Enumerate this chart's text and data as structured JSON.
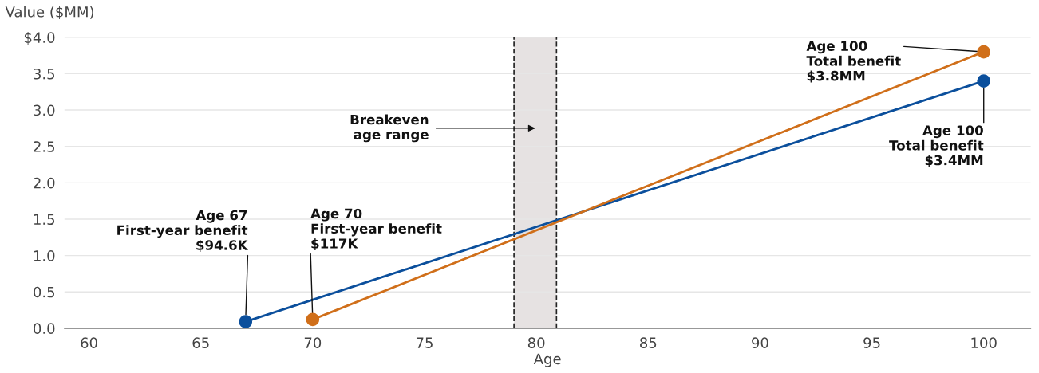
{
  "chart_data": {
    "type": "line",
    "xlabel": "Age",
    "ylabel": "Value ($MM)",
    "xlim": [
      58.9,
      102.1
    ],
    "xticks": [
      60,
      65,
      70,
      75,
      80,
      85,
      90,
      95,
      100
    ],
    "ylim": [
      0,
      4
    ],
    "yticks": [
      {
        "value": 0,
        "label": "0.0"
      },
      {
        "value": 0.5,
        "label": "0.5"
      },
      {
        "value": 1,
        "label": "1.0"
      },
      {
        "value": 1.5,
        "label": "1.5"
      },
      {
        "value": 2,
        "label": "2.0"
      },
      {
        "value": 2.5,
        "label": "2.5"
      },
      {
        "value": 3,
        "label": "3.0"
      },
      {
        "value": 3.5,
        "label": "3.5"
      },
      {
        "value": 4,
        "label": "$4.0"
      }
    ],
    "grid": "y",
    "marker": "circle",
    "line_style": "solid",
    "series": [
      {
        "color": "#0b4f9c",
        "x": [
          67,
          100
        ],
        "values": [
          0.09,
          3.4
        ]
      },
      {
        "color": "#d06f1a",
        "x": [
          70,
          100
        ],
        "values": [
          0.12,
          3.8
        ]
      }
    ],
    "bands": [
      {
        "axis": "x",
        "from": 79,
        "to": 80.9,
        "label": "Breakeven\nage range",
        "color": "#e6e2e2"
      }
    ],
    "ref_lines": [
      {
        "axis": "x",
        "value": 79,
        "color": "#222222",
        "line_style": "dashed"
      },
      {
        "axis": "x",
        "value": 80.9,
        "color": "#222222",
        "line_style": "dashed"
      }
    ],
    "annotations": [
      {
        "text": "Age 67\nFirst-year benefit\n$94.6K",
        "x": 67,
        "y": 0.0946
      },
      {
        "text": "Age 70\nFirst-year benefit\n$117K",
        "x": 70,
        "y": 0.117
      },
      {
        "text": "Age 100\nTotal benefit\n$3.8MM",
        "x": 100,
        "y": 3.8
      },
      {
        "text": "Age 100\nTotal benefit\n$3.4MM",
        "x": 100,
        "y": 3.4
      }
    ]
  }
}
